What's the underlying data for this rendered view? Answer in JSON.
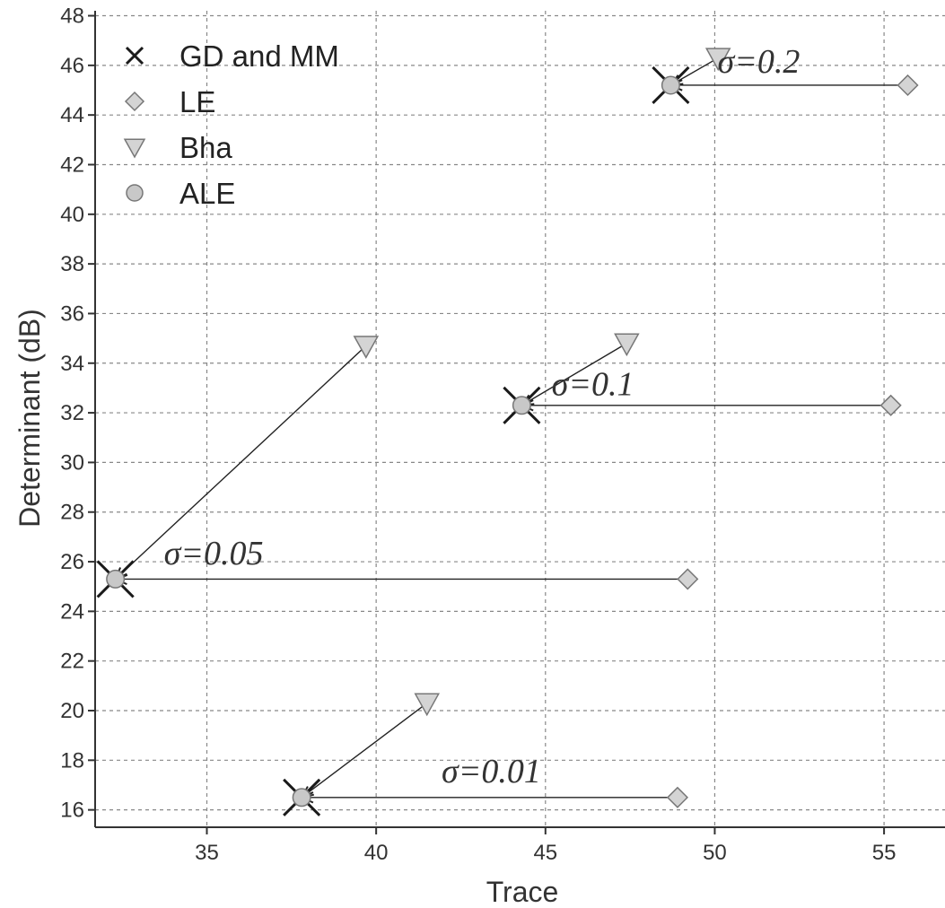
{
  "chart_data": {
    "type": "scatter",
    "title": "",
    "xlabel": "Trace",
    "ylabel": "Determinant (dB)",
    "xlim": [
      31.7,
      56.8
    ],
    "ylim": [
      15.3,
      48.2
    ],
    "xticks": [
      35,
      40,
      45,
      50,
      55
    ],
    "yticks": [
      16,
      18,
      20,
      22,
      24,
      26,
      28,
      30,
      32,
      34,
      36,
      38,
      40,
      42,
      44,
      46,
      48
    ],
    "grid": true,
    "legend_position": "top-left",
    "series": [
      {
        "name": "GD and MM",
        "marker": "x",
        "color": "#1a1a1a",
        "points": [
          [
            37.8,
            16.5
          ],
          [
            32.3,
            25.3
          ],
          [
            44.3,
            32.3
          ],
          [
            48.7,
            45.2
          ]
        ]
      },
      {
        "name": "LE",
        "marker": "diamond",
        "color": "#c8c8c8",
        "points": [
          [
            48.9,
            16.5
          ],
          [
            49.2,
            25.3
          ],
          [
            55.2,
            32.3
          ],
          [
            55.7,
            45.2
          ]
        ]
      },
      {
        "name": "Bha",
        "marker": "triangle-down",
        "color": "#c8c8c8",
        "points": [
          [
            41.5,
            20.3
          ],
          [
            39.7,
            34.7
          ],
          [
            47.4,
            34.8
          ],
          [
            50.1,
            46.3
          ]
        ]
      },
      {
        "name": "ALE",
        "marker": "circle",
        "color": "#c8c8c8",
        "points": [
          [
            37.8,
            16.5
          ],
          [
            32.3,
            25.3
          ],
          [
            44.3,
            32.3
          ],
          [
            48.7,
            45.2
          ]
        ]
      }
    ],
    "connectors": [
      {
        "from": [
          48.9,
          16.5
        ],
        "to": [
          37.8,
          16.5
        ]
      },
      {
        "from": [
          41.5,
          20.3
        ],
        "to": [
          37.8,
          16.5
        ]
      },
      {
        "from": [
          49.2,
          25.3
        ],
        "to": [
          32.3,
          25.3
        ]
      },
      {
        "from": [
          39.7,
          34.7
        ],
        "to": [
          32.3,
          25.3
        ]
      },
      {
        "from": [
          55.2,
          32.3
        ],
        "to": [
          44.3,
          32.3
        ]
      },
      {
        "from": [
          47.4,
          34.8
        ],
        "to": [
          44.3,
          32.3
        ]
      },
      {
        "from": [
          55.7,
          45.2
        ],
        "to": [
          48.7,
          45.2
        ]
      },
      {
        "from": [
          50.1,
          46.3
        ],
        "to": [
          48.7,
          45.2
        ]
      }
    ],
    "annotations": [
      {
        "text": "σ=0.01",
        "x": 43.4,
        "y": 17.1
      },
      {
        "text": "σ=0.05",
        "x": 35.2,
        "y": 25.9
      },
      {
        "text": "σ=0.1",
        "x": 46.4,
        "y": 32.7
      },
      {
        "text": "σ=0.2",
        "x": 51.3,
        "y": 45.7
      }
    ]
  }
}
